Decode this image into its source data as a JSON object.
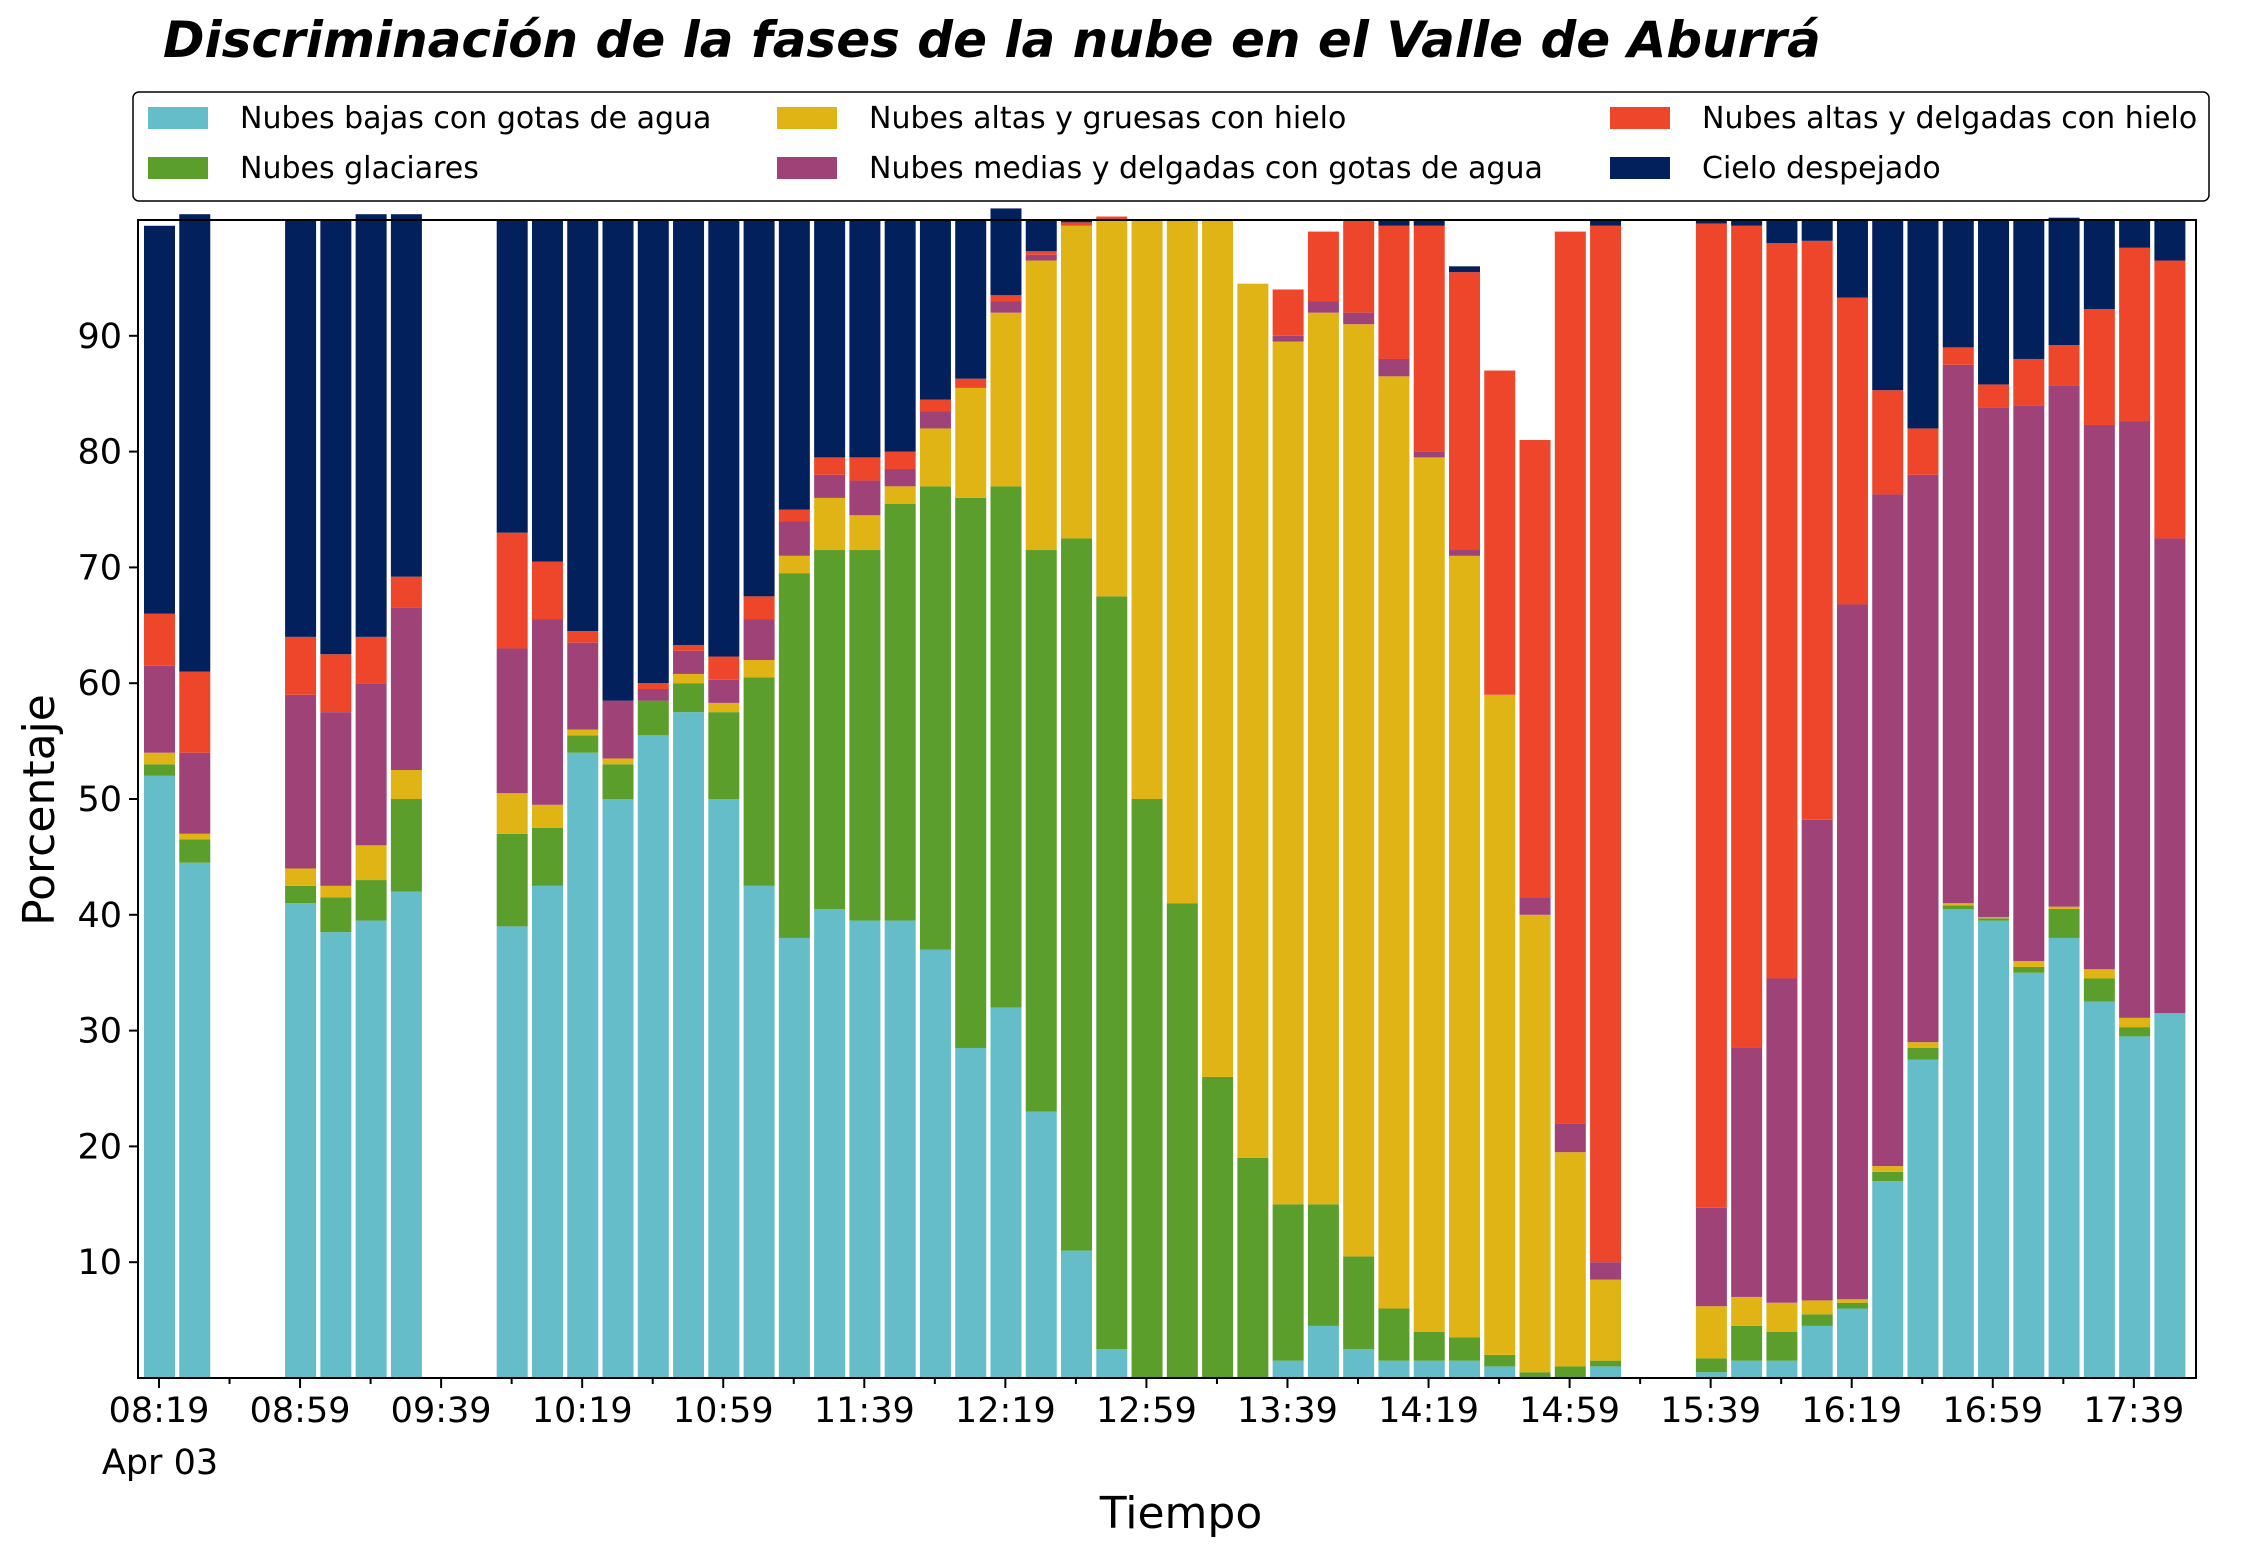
{
  "chart_data": {
    "type": "bar",
    "stacked": true,
    "title": "Discriminación de la fases de la nube en el Valle de Aburrá",
    "xlabel": "Tiempo",
    "ylabel": "Porcentaje",
    "ylim": [
      0,
      100
    ],
    "yticks": [
      10,
      20,
      30,
      40,
      50,
      60,
      70,
      80,
      90
    ],
    "x_start": "08:09",
    "x_step_minutes": 10,
    "x_tick_labels": [
      "08:19",
      "08:59",
      "09:39",
      "10:19",
      "10:59",
      "11:39",
      "12:19",
      "12:59",
      "13:39",
      "14:19",
      "14:59",
      "15:39",
      "16:19",
      "16:59",
      "17:39"
    ],
    "x_date_label": "Apr 03",
    "grid": false,
    "legend_position": "top",
    "categories": [
      "08:19",
      "08:29",
      "08:39",
      "08:49",
      "08:59",
      "09:09",
      "09:19",
      "09:29",
      "09:39",
      "09:49",
      "09:59",
      "10:09",
      "10:19",
      "10:29",
      "10:39",
      "10:49",
      "10:59",
      "11:09",
      "11:19",
      "11:29",
      "11:39",
      "11:49",
      "11:59",
      "12:09",
      "12:19",
      "12:29",
      "12:39",
      "12:49",
      "12:59",
      "13:09",
      "13:19",
      "13:29",
      "13:39",
      "13:49",
      "13:59",
      "14:09",
      "14:19",
      "14:29",
      "14:39",
      "14:49",
      "14:59",
      "15:09",
      "15:19",
      "15:29",
      "15:39",
      "15:49",
      "15:59",
      "16:09",
      "16:19",
      "16:29",
      "16:39",
      "16:49",
      "16:59",
      "17:09",
      "17:19",
      "17:29",
      "17:39",
      "17:49"
    ],
    "series": [
      {
        "name": "Nubes bajas con gotas de agua",
        "color": "#64bdc9",
        "values": [
          52,
          44.5,
          null,
          null,
          41,
          38.5,
          39.5,
          42,
          null,
          null,
          39,
          42.5,
          54,
          50,
          55.5,
          57.5,
          50,
          42.5,
          38,
          40.5,
          39.5,
          39.5,
          37,
          28.5,
          32,
          23,
          11,
          2.5,
          0,
          0,
          0,
          0,
          1.5,
          4.5,
          2.5,
          1.5,
          1.5,
          1.5,
          1,
          0,
          0,
          1,
          null,
          null,
          0.5,
          1.5,
          1.5,
          4.5,
          6,
          17,
          27.5,
          40.5,
          39.5,
          35,
          38,
          32.5,
          29.5,
          31.5
        ]
      },
      {
        "name": "Nubes glaciares",
        "color": "#5b9e2c",
        "values": [
          1,
          2,
          null,
          null,
          1.5,
          3,
          3.5,
          8,
          null,
          null,
          8,
          5,
          1.5,
          3,
          3,
          2.5,
          7.5,
          18,
          31.5,
          31,
          32,
          36,
          40,
          47.5,
          45,
          48.5,
          61.5,
          65,
          50,
          41,
          26,
          19,
          13.5,
          10.5,
          8,
          4.5,
          2.5,
          2,
          1,
          0.5,
          1,
          0.5,
          null,
          null,
          1.2,
          3,
          2.5,
          1,
          0.5,
          0.8,
          1,
          0.3,
          0.2,
          0.5,
          2.5,
          2,
          0.8,
          0
        ]
      },
      {
        "name": "Nubes altas y gruesas con hielo",
        "color": "#e0b414",
        "values": [
          1,
          0.5,
          null,
          null,
          1.5,
          1,
          3,
          2.5,
          null,
          null,
          3.5,
          2,
          0.5,
          0.5,
          0,
          0.8,
          0.8,
          1.5,
          1.5,
          4.5,
          3,
          1.5,
          5,
          9.5,
          15,
          25,
          27,
          32.5,
          50,
          59,
          74,
          75.5,
          74.5,
          77,
          80.5,
          80.5,
          75.5,
          67.5,
          57,
          39.5,
          18.5,
          7,
          null,
          null,
          4.5,
          2.5,
          2.5,
          1.2,
          0.3,
          0.5,
          0.5,
          0.2,
          0.1,
          0.5,
          0.2,
          0.8,
          0.8,
          0
        ]
      },
      {
        "name": "Nubes medias y delgadas con gotas de agua",
        "color": "#9e4278",
        "values": [
          7.5,
          7,
          null,
          null,
          15,
          15,
          14,
          14,
          null,
          null,
          12.5,
          16,
          7.5,
          5,
          1,
          2,
          2,
          3.5,
          3,
          2,
          3,
          1.5,
          1.5,
          0,
          1,
          0.5,
          0,
          0,
          0,
          0,
          0,
          0,
          0.5,
          1,
          1,
          1.5,
          0.5,
          0.5,
          0,
          1.5,
          2.5,
          1.5,
          null,
          null,
          8.5,
          21.5,
          28,
          41.5,
          60,
          58,
          49,
          46.5,
          44,
          48,
          45,
          47,
          51.5,
          41
        ]
      },
      {
        "name": "Nubes altas y delgadas con hielo",
        "color": "#ee462b",
        "values": [
          4.5,
          7,
          null,
          null,
          5,
          5,
          4,
          2.7,
          null,
          null,
          10,
          5,
          1,
          0,
          0.5,
          0.5,
          2,
          2,
          1,
          1.5,
          2,
          1.5,
          1,
          0.8,
          0.5,
          0.3,
          0.3,
          0.3,
          0,
          0,
          0,
          0,
          4,
          6,
          8,
          11.5,
          19.5,
          24,
          28,
          39.5,
          77,
          89.5,
          null,
          null,
          85,
          71,
          63.5,
          50,
          26.5,
          9,
          4,
          1.5,
          2,
          4,
          3.5,
          10,
          15,
          24
        ]
      },
      {
        "name": "Cielo despejado",
        "color": "#02205c",
        "values": [
          33.5,
          39.5,
          null,
          null,
          36,
          37.5,
          36.5,
          31.3,
          null,
          null,
          27,
          29.5,
          35.5,
          41.5,
          40,
          36.7,
          37.7,
          32.5,
          25,
          20.5,
          20.5,
          20,
          15.5,
          13.7,
          7.5,
          2.7,
          0.2,
          0,
          0,
          0,
          0,
          0,
          0,
          0,
          0,
          0.5,
          0.5,
          0.5,
          0,
          0,
          0,
          0.5,
          null,
          null,
          0.3,
          0.5,
          2,
          1.8,
          6.7,
          14.7,
          18,
          11,
          14.2,
          12,
          11,
          7.7,
          2.4,
          3.5
        ]
      }
    ]
  }
}
